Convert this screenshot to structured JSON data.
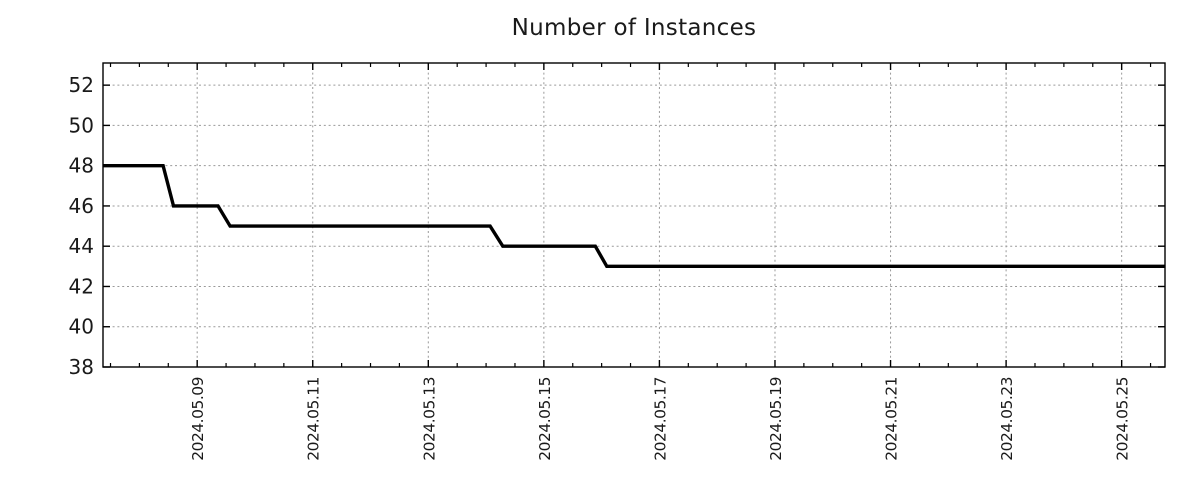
{
  "chart_data": {
    "type": "line",
    "title": "Number of Instances",
    "x_axis": {
      "kind": "time",
      "tick_labels": [
        "2024.05.09",
        "2024.05.11",
        "2024.05.13",
        "2024.05.15",
        "2024.05.17",
        "2024.05.19",
        "2024.05.21",
        "2024.05.23",
        "2024.05.25"
      ],
      "tick_days": [
        9,
        11,
        13,
        15,
        17,
        19,
        21,
        23,
        25
      ],
      "minor_tick_step_days": 0.5,
      "range_days": [
        7.37,
        25.75
      ],
      "label_rotation_deg": -90
    },
    "y_axis": {
      "tick_labels": [
        "38",
        "40",
        "42",
        "44",
        "46",
        "48",
        "50",
        "52"
      ],
      "tick_values": [
        38,
        40,
        42,
        44,
        46,
        48,
        50,
        52
      ],
      "range": [
        38,
        53.1
      ]
    },
    "grid": {
      "style": "dotted",
      "on": true
    },
    "legend": "none",
    "series": [
      {
        "name": "number-of-instances",
        "color": "#000000",
        "points": [
          [
            7.37,
            48
          ],
          [
            8.41,
            48
          ],
          [
            8.59,
            46
          ],
          [
            9.36,
            46
          ],
          [
            9.57,
            45
          ],
          [
            14.07,
            45
          ],
          [
            14.29,
            44
          ],
          [
            15.89,
            44
          ],
          [
            16.09,
            43
          ],
          [
            25.75,
            43
          ]
        ]
      }
    ],
    "step_summary": [
      {
        "value": 48,
        "until_day": "2024.05.08 ~10:00"
      },
      {
        "value": 46,
        "from_day": "2024.05.08",
        "until_day": "2024.05.09"
      },
      {
        "value": 45,
        "from_day": "2024.05.09",
        "until_day": "2024.05.14"
      },
      {
        "value": 44,
        "from_day": "2024.05.14",
        "until_day": "2024.05.16"
      },
      {
        "value": 43,
        "from_day": "2024.05.16",
        "until_day": "end of chart"
      }
    ],
    "colors": {
      "background": "#ffffff",
      "line": "#000000",
      "grid": "#9a9a9a",
      "axis": "#000000",
      "text": "#1a1a1a"
    }
  }
}
